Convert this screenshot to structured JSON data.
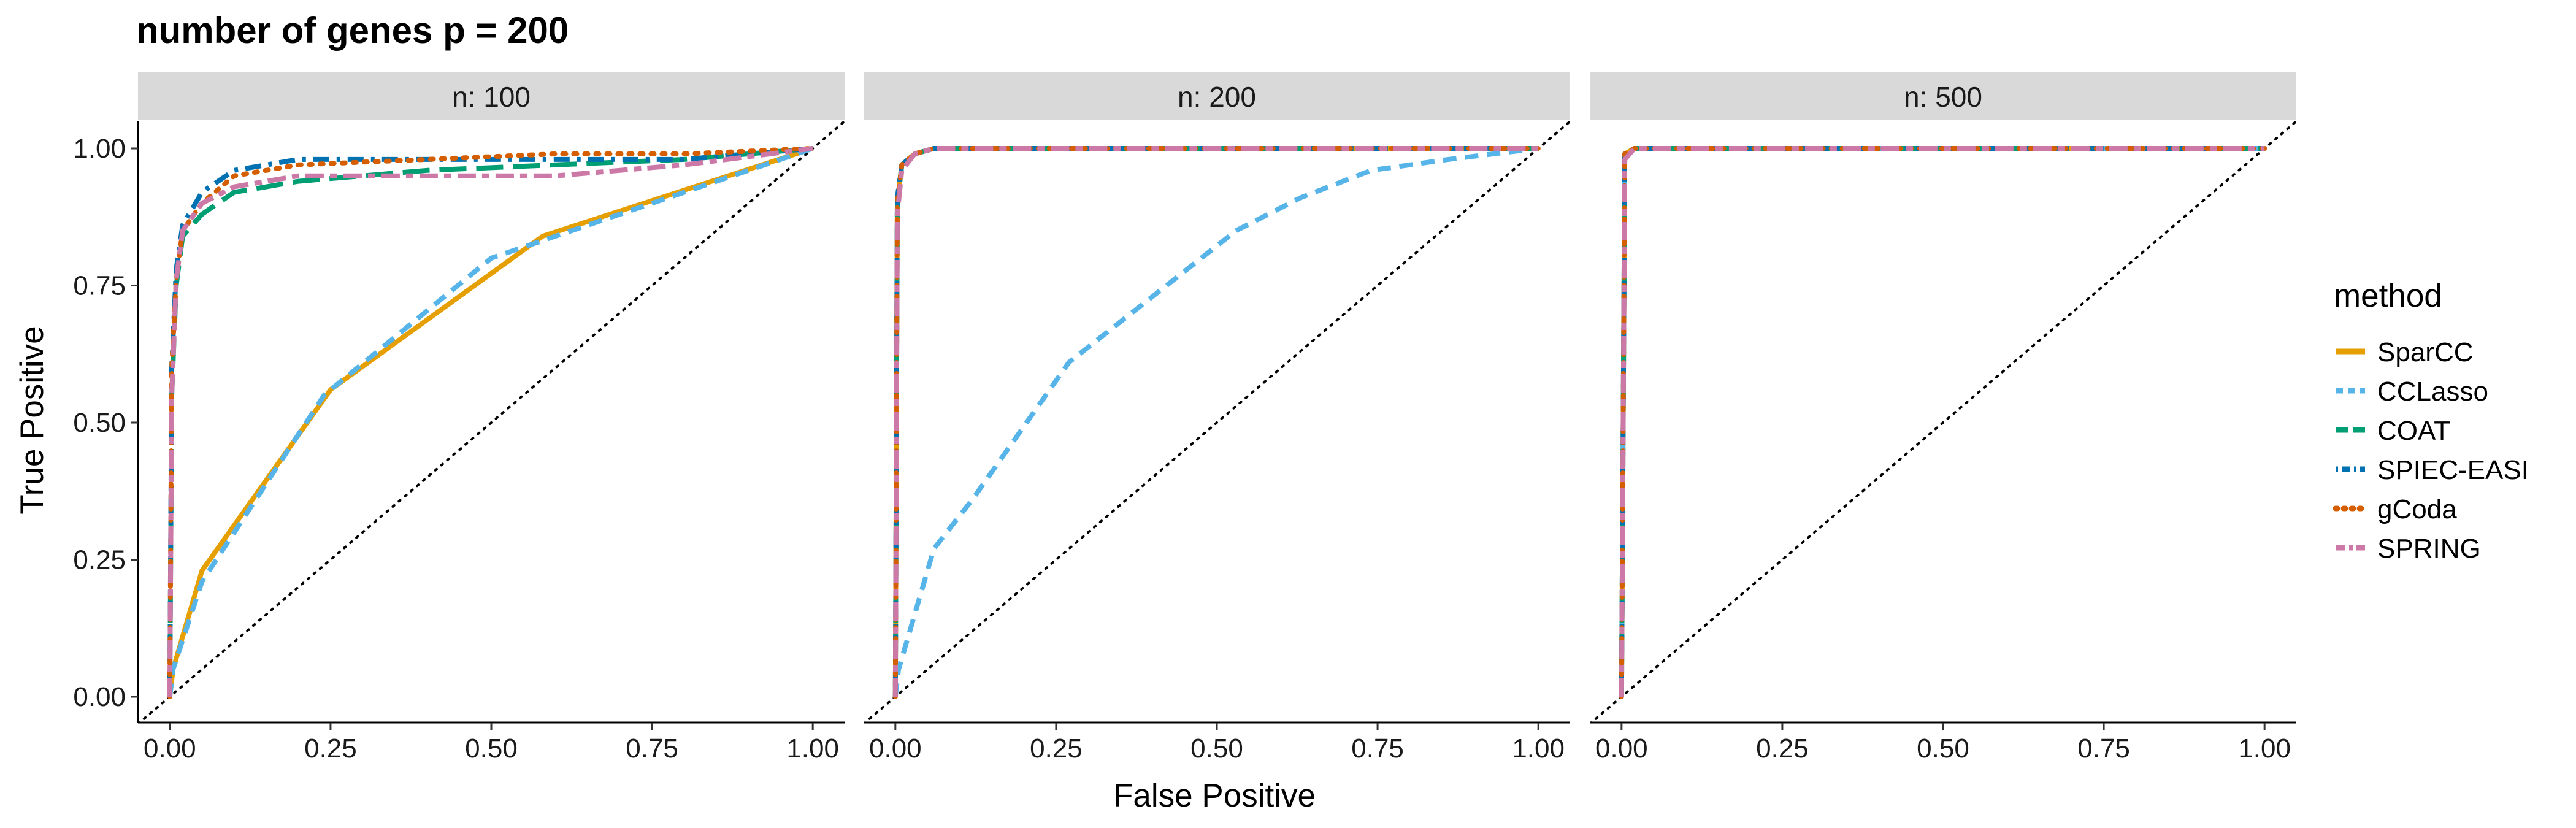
{
  "chart_data": {
    "type": "line",
    "title": "number of genes p = 200",
    "xlabel": "False Positive",
    "ylabel": "True Positive",
    "xlim": [
      0,
      1
    ],
    "ylim": [
      0,
      1
    ],
    "x_ticks": [
      "0.00",
      "0.25",
      "0.50",
      "0.75",
      "1.00"
    ],
    "y_ticks": [
      "0.00",
      "0.25",
      "0.50",
      "0.75",
      "1.00"
    ],
    "grid": false,
    "reference_line": "diagonal dotted y = x",
    "legend": {
      "title": "method",
      "placement": "right",
      "entries": [
        "SparCC",
        "CCLasso",
        "COAT",
        "SPIEC-EASI",
        "gCoda",
        "SPRING"
      ]
    },
    "colors": {
      "SparCC": "#E69F00",
      "CCLasso": "#56B4E9",
      "COAT": "#009E73",
      "SPIEC-EASI": "#0072B2",
      "gCoda": "#D55E00",
      "SPRING": "#CC79A7",
      "strip_background": "#D9D9D9"
    },
    "line_styles": {
      "SparCC": "solid",
      "CCLasso": "dashed",
      "COAT": "longdash",
      "SPIEC-EASI": "dotdash",
      "gCoda": "dotted",
      "SPRING": "twodash"
    },
    "panels": [
      {
        "strip": "n: 100",
        "series": [
          {
            "name": "SparCC",
            "x": [
              0,
              0.005,
              0.05,
              0.25,
              0.58,
              1.0
            ],
            "y": [
              0,
              0.05,
              0.23,
              0.56,
              0.84,
              1.0
            ]
          },
          {
            "name": "CCLasso",
            "x": [
              0,
              0.005,
              0.05,
              0.24,
              0.5,
              0.75,
              1.0
            ],
            "y": [
              0,
              0.05,
              0.21,
              0.55,
              0.8,
              0.9,
              1.0
            ]
          },
          {
            "name": "COAT",
            "x": [
              0,
              0.003,
              0.01,
              0.02,
              0.05,
              0.1,
              0.2,
              0.4,
              0.6,
              0.8,
              1.0
            ],
            "y": [
              0,
              0.55,
              0.75,
              0.84,
              0.88,
              0.92,
              0.94,
              0.96,
              0.97,
              0.98,
              1.0
            ]
          },
          {
            "name": "SPIEC-EASI",
            "x": [
              0,
              0.003,
              0.01,
              0.02,
              0.05,
              0.1,
              0.2,
              0.4,
              0.6,
              0.8,
              1.0
            ],
            "y": [
              0,
              0.6,
              0.78,
              0.86,
              0.92,
              0.96,
              0.98,
              0.98,
              0.98,
              0.98,
              1.0
            ]
          },
          {
            "name": "gCoda",
            "x": [
              0,
              0.003,
              0.01,
              0.02,
              0.05,
              0.1,
              0.2,
              0.4,
              0.6,
              0.8,
              1.0
            ],
            "y": [
              0,
              0.6,
              0.76,
              0.85,
              0.9,
              0.95,
              0.97,
              0.98,
              0.99,
              0.99,
              1.0
            ]
          },
          {
            "name": "SPRING",
            "x": [
              0,
              0.003,
              0.01,
              0.02,
              0.05,
              0.1,
              0.2,
              0.4,
              0.6,
              0.8,
              1.0
            ],
            "y": [
              0,
              0.55,
              0.76,
              0.85,
              0.9,
              0.93,
              0.95,
              0.95,
              0.95,
              0.97,
              1.0
            ]
          }
        ]
      },
      {
        "strip": "n: 200",
        "series": [
          {
            "name": "SparCC",
            "x": [
              0,
              0.003,
              0.01,
              0.03,
              0.06,
              0.2,
              0.5,
              1.0
            ],
            "y": [
              0,
              0.9,
              0.97,
              0.99,
              1.0,
              1.0,
              1.0,
              1.0
            ]
          },
          {
            "name": "CCLasso",
            "x": [
              0,
              0.005,
              0.06,
              0.12,
              0.27,
              0.4,
              0.53,
              0.63,
              0.74,
              0.86,
              1.0
            ],
            "y": [
              0,
              0.05,
              0.27,
              0.36,
              0.61,
              0.73,
              0.85,
              0.91,
              0.96,
              0.98,
              1.0
            ]
          },
          {
            "name": "COAT",
            "x": [
              0,
              0.003,
              0.01,
              0.03,
              0.06,
              0.2,
              0.5,
              1.0
            ],
            "y": [
              0,
              0.9,
              0.97,
              0.99,
              1.0,
              1.0,
              1.0,
              1.0
            ]
          },
          {
            "name": "SPIEC-EASI",
            "x": [
              0,
              0.003,
              0.01,
              0.03,
              0.06,
              0.2,
              0.5,
              1.0
            ],
            "y": [
              0,
              0.91,
              0.97,
              0.99,
              1.0,
              1.0,
              1.0,
              1.0
            ]
          },
          {
            "name": "gCoda",
            "x": [
              0,
              0.003,
              0.01,
              0.03,
              0.06,
              0.2,
              0.5,
              1.0
            ],
            "y": [
              0,
              0.9,
              0.97,
              0.99,
              1.0,
              1.0,
              1.0,
              1.0
            ]
          },
          {
            "name": "SPRING",
            "x": [
              0,
              0.003,
              0.01,
              0.03,
              0.06,
              0.2,
              0.5,
              1.0
            ],
            "y": [
              0,
              0.88,
              0.96,
              0.99,
              1.0,
              1.0,
              1.0,
              1.0
            ]
          }
        ]
      },
      {
        "strip": "n: 500",
        "series": [
          {
            "name": "SparCC",
            "x": [
              0,
              0.005,
              0.02,
              0.1,
              1.0
            ],
            "y": [
              0,
              0.99,
              1.0,
              1.0,
              1.0
            ]
          },
          {
            "name": "CCLasso",
            "x": [
              0,
              0.005,
              0.02,
              0.1,
              1.0
            ],
            "y": [
              0,
              0.99,
              1.0,
              1.0,
              1.0
            ]
          },
          {
            "name": "COAT",
            "x": [
              0,
              0.005,
              0.02,
              0.1,
              1.0
            ],
            "y": [
              0,
              0.99,
              1.0,
              1.0,
              1.0
            ]
          },
          {
            "name": "SPIEC-EASI",
            "x": [
              0,
              0.005,
              0.02,
              0.1,
              1.0
            ],
            "y": [
              0,
              0.99,
              1.0,
              1.0,
              1.0
            ]
          },
          {
            "name": "gCoda",
            "x": [
              0,
              0.005,
              0.02,
              0.1,
              1.0
            ],
            "y": [
              0,
              0.99,
              1.0,
              1.0,
              1.0
            ]
          },
          {
            "name": "SPRING",
            "x": [
              0,
              0.005,
              0.02,
              0.1,
              1.0
            ],
            "y": [
              0,
              0.98,
              1.0,
              1.0,
              1.0
            ]
          }
        ]
      }
    ]
  }
}
